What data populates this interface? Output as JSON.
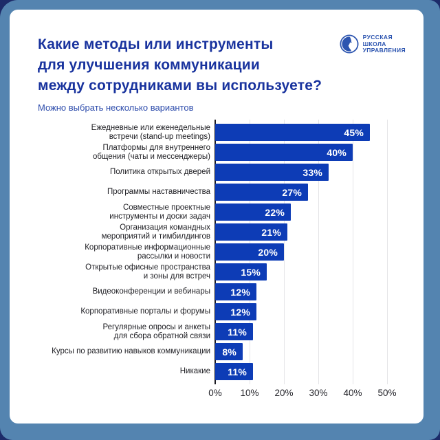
{
  "header": {
    "title_lines": [
      "Какие методы или инструменты",
      "для улучшения коммуникации",
      "между сотрудниками вы используете?"
    ],
    "subtitle": "Можно выбрать несколько вариантов"
  },
  "logo": {
    "lines": [
      "РУССКАЯ",
      "ШКОЛА",
      "УПРАВЛЕНИЯ"
    ],
    "emblem": "face-profile-in-circle"
  },
  "colors": {
    "bar": "#0d3cb6",
    "title": "#19339e",
    "subtitle": "#2c4bab",
    "frame": "#5484b0",
    "corner_background": "#1d2b69",
    "card": "#ffffff",
    "gridline": "#e4e4e7",
    "axis_line": "#1b1b22",
    "value_label": "#ffffff",
    "category_label": "#202025"
  },
  "chart_data": {
    "type": "bar",
    "orientation": "horizontal",
    "title": "Какие методы или инструменты для улучшения коммуникации между сотрудниками вы используете?",
    "subtitle": "Можно выбрать несколько вариантов",
    "unit": "%",
    "categories": [
      [
        "Ежедневные или еженедельные",
        "встречи (stand-up meetings)"
      ],
      [
        "Платформы для внутреннего",
        "общения (чаты и мессенджеры)"
      ],
      [
        "Политика открытых дверей"
      ],
      [
        "Программы наставничества"
      ],
      [
        "Совместные проектные",
        "инструменты и доски задач"
      ],
      [
        "Организация командных",
        "мероприятий и тимбилдингов"
      ],
      [
        "Корпоративные информационные",
        "рассылки и новости"
      ],
      [
        "Открытые офисные пространства",
        "и зоны для встреч"
      ],
      [
        "Видеоконференции и вебинары"
      ],
      [
        "Корпоративные порталы и форумы"
      ],
      [
        "Регулярные опросы и анкеты",
        "для сбора обратной связи"
      ],
      [
        "Курсы по развитию навыков коммуникации"
      ],
      [
        "Никакие"
      ]
    ],
    "values": [
      45,
      40,
      33,
      27,
      22,
      21,
      20,
      15,
      12,
      12,
      11,
      8,
      11
    ],
    "x_ticks": [
      "0%",
      "10%",
      "20%",
      "30%",
      "40%",
      "50%"
    ],
    "xlim": [
      0,
      50
    ],
    "grid": "vertical",
    "legend": "none",
    "value_labels": "inside-end"
  }
}
